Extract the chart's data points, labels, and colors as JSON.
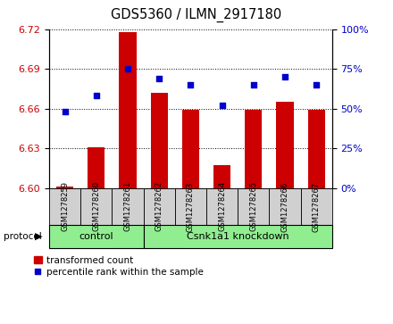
{
  "title": "GDS5360 / ILMN_2917180",
  "samples": [
    "GSM1278259",
    "GSM1278260",
    "GSM1278261",
    "GSM1278262",
    "GSM1278263",
    "GSM1278264",
    "GSM1278265",
    "GSM1278266",
    "GSM1278267"
  ],
  "bar_values": [
    6.601,
    6.631,
    6.718,
    6.672,
    6.659,
    6.617,
    6.659,
    6.665,
    6.659
  ],
  "dot_values": [
    48,
    58,
    75,
    69,
    65,
    52,
    65,
    70,
    65
  ],
  "ylim_left": [
    6.6,
    6.72
  ],
  "ylim_right": [
    0,
    100
  ],
  "yticks_left": [
    6.6,
    6.63,
    6.66,
    6.69,
    6.72
  ],
  "yticks_right": [
    0,
    25,
    50,
    75,
    100
  ],
  "bar_color": "#cc0000",
  "dot_color": "#0000cc",
  "bar_width": 0.55,
  "control_count": 3,
  "knockdown_count": 6,
  "control_label": "control",
  "knockdown_label": "Csnk1a1 knockdown",
  "protocol_label": "protocol",
  "legend_bar_label": "transformed count",
  "legend_dot_label": "percentile rank within the sample",
  "group_color": "#90ee90",
  "tick_label_color_left": "#cc0000",
  "tick_label_color_right": "#0000cc",
  "base_value": 6.6,
  "sample_box_color": "#d0d0d0",
  "fig_width": 4.4,
  "fig_height": 3.63
}
